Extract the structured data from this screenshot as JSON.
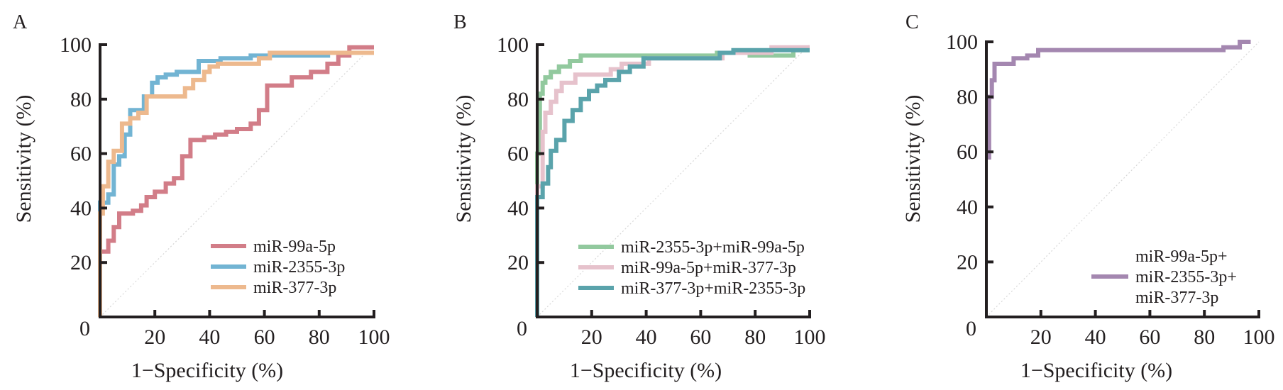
{
  "chart_data": [
    {
      "type": "line",
      "panel": "A",
      "xlabel": "1−Specificity (%)",
      "ylabel": "Sensitivity (%)",
      "xlim": [
        0,
        100
      ],
      "ylim": [
        0,
        100
      ],
      "xticks": [
        "20",
        "40",
        "60",
        "80",
        "100"
      ],
      "yticks": [
        "20",
        "40",
        "60",
        "80",
        "100"
      ],
      "origin_label": "0",
      "reference_diagonal": true,
      "legend_position": "bottom-right",
      "series": [
        {
          "name": "miR-99a-5p",
          "color": "#d27d88",
          "points": [
            [
              0,
              0
            ],
            [
              0,
              24
            ],
            [
              3,
              24
            ],
            [
              3,
              28
            ],
            [
              5,
              28
            ],
            [
              5,
              33
            ],
            [
              7,
              33
            ],
            [
              7,
              38
            ],
            [
              12,
              38
            ],
            [
              12,
              39
            ],
            [
              15,
              39
            ],
            [
              15,
              41
            ],
            [
              17,
              41
            ],
            [
              17,
              44
            ],
            [
              20,
              44
            ],
            [
              20,
              46
            ],
            [
              24,
              46
            ],
            [
              24,
              49
            ],
            [
              27,
              49
            ],
            [
              27,
              51
            ],
            [
              30,
              51
            ],
            [
              30,
              59
            ],
            [
              33,
              59
            ],
            [
              33,
              65
            ],
            [
              38,
              65
            ],
            [
              38,
              66
            ],
            [
              42,
              66
            ],
            [
              42,
              67
            ],
            [
              46,
              67
            ],
            [
              46,
              68
            ],
            [
              50,
              68
            ],
            [
              50,
              69
            ],
            [
              55,
              69
            ],
            [
              55,
              71
            ],
            [
              58,
              71
            ],
            [
              58,
              76
            ],
            [
              61,
              76
            ],
            [
              61,
              85
            ],
            [
              70,
              85
            ],
            [
              70,
              88
            ],
            [
              77,
              88
            ],
            [
              77,
              90
            ],
            [
              83,
              90
            ],
            [
              83,
              93
            ],
            [
              87,
              93
            ],
            [
              87,
              96
            ],
            [
              91,
              96
            ],
            [
              91,
              99
            ],
            [
              100,
              99
            ]
          ]
        },
        {
          "name": "miR-2355-3p",
          "color": "#72b4d3",
          "points": [
            [
              0,
              0
            ],
            [
              0,
              42
            ],
            [
              3,
              42
            ],
            [
              3,
              45
            ],
            [
              5,
              45
            ],
            [
              5,
              56
            ],
            [
              7,
              56
            ],
            [
              7,
              59
            ],
            [
              9,
              59
            ],
            [
              9,
              67
            ],
            [
              11,
              67
            ],
            [
              11,
              76
            ],
            [
              16,
              76
            ],
            [
              16,
              81
            ],
            [
              19,
              81
            ],
            [
              19,
              86
            ],
            [
              21,
              86
            ],
            [
              21,
              88
            ],
            [
              24,
              88
            ],
            [
              24,
              89
            ],
            [
              28,
              89
            ],
            [
              28,
              90
            ],
            [
              36,
              90
            ],
            [
              36,
              94
            ],
            [
              44,
              94
            ],
            [
              44,
              95
            ],
            [
              55,
              95
            ],
            [
              55,
              96
            ],
            [
              84,
              96
            ]
          ]
        },
        {
          "name": "miR-377-3p",
          "color": "#edb98e",
          "points": [
            [
              0,
              0
            ],
            [
              0,
              38
            ],
            [
              1,
              38
            ],
            [
              1,
              48
            ],
            [
              3,
              48
            ],
            [
              3,
              57
            ],
            [
              5,
              57
            ],
            [
              5,
              61
            ],
            [
              8,
              61
            ],
            [
              8,
              71
            ],
            [
              11,
              71
            ],
            [
              11,
              73
            ],
            [
              14,
              73
            ],
            [
              14,
              75
            ],
            [
              17,
              75
            ],
            [
              17,
              81
            ],
            [
              31,
              81
            ],
            [
              31,
              84
            ],
            [
              34,
              84
            ],
            [
              34,
              87
            ],
            [
              38,
              87
            ],
            [
              38,
              90
            ],
            [
              40,
              90
            ],
            [
              40,
              92
            ],
            [
              43,
              92
            ],
            [
              43,
              93
            ],
            [
              58,
              93
            ],
            [
              58,
              95
            ],
            [
              62,
              95
            ],
            [
              62,
              97
            ],
            [
              100,
              97
            ]
          ]
        }
      ]
    },
    {
      "type": "line",
      "panel": "B",
      "xlabel": "1−Specificity (%)",
      "ylabel": "Sensitivity (%)",
      "xlim": [
        0,
        100
      ],
      "ylim": [
        0,
        100
      ],
      "xticks": [
        "20",
        "40",
        "60",
        "80",
        "100"
      ],
      "yticks": [
        "20",
        "40",
        "60",
        "80",
        "100"
      ],
      "origin_label": "0",
      "reference_diagonal": true,
      "legend_position": "bottom-right",
      "series": [
        {
          "name": "miR-2355-3p+miR-99a-5p",
          "color": "#92c99e",
          "points": [
            [
              0,
              0
            ],
            [
              0,
              60
            ],
            [
              1,
              60
            ],
            [
              1,
              82
            ],
            [
              2,
              82
            ],
            [
              2,
              86
            ],
            [
              3,
              86
            ],
            [
              3,
              88
            ],
            [
              5,
              88
            ],
            [
              5,
              90
            ],
            [
              8,
              90
            ],
            [
              8,
              92
            ],
            [
              12,
              92
            ],
            [
              12,
              94
            ],
            [
              16,
              94
            ],
            [
              16,
              96
            ],
            [
              66,
              96
            ],
            [
              66,
              97
            ],
            [
              78,
              97
            ],
            [
              78,
              96
            ],
            [
              94,
              96
            ],
            [
              94,
              98
            ],
            [
              100,
              98
            ]
          ]
        },
        {
          "name": "miR-99a-5p+miR-377-3p",
          "color": "#e6c2cc",
          "points": [
            [
              0,
              0
            ],
            [
              0,
              48
            ],
            [
              2,
              48
            ],
            [
              2,
              68
            ],
            [
              3,
              68
            ],
            [
              3,
              75
            ],
            [
              5,
              75
            ],
            [
              5,
              79
            ],
            [
              7,
              79
            ],
            [
              7,
              83
            ],
            [
              9,
              83
            ],
            [
              9,
              86
            ],
            [
              14,
              86
            ],
            [
              14,
              89
            ],
            [
              27,
              89
            ],
            [
              27,
              91
            ],
            [
              31,
              91
            ],
            [
              31,
              93
            ],
            [
              41,
              93
            ],
            [
              41,
              95
            ],
            [
              68,
              95
            ],
            [
              68,
              97
            ],
            [
              86,
              97
            ],
            [
              86,
              99
            ],
            [
              100,
              99
            ]
          ]
        },
        {
          "name": "miR-377-3p+miR-2355-3p",
          "color": "#5aa3ab",
          "points": [
            [
              0,
              0
            ],
            [
              0,
              44
            ],
            [
              2,
              44
            ],
            [
              2,
              49
            ],
            [
              4,
              49
            ],
            [
              4,
              55
            ],
            [
              5,
              55
            ],
            [
              5,
              61
            ],
            [
              7,
              61
            ],
            [
              7,
              65
            ],
            [
              10,
              65
            ],
            [
              10,
              72
            ],
            [
              13,
              72
            ],
            [
              13,
              76
            ],
            [
              16,
              76
            ],
            [
              16,
              80
            ],
            [
              19,
              80
            ],
            [
              19,
              83
            ],
            [
              22,
              83
            ],
            [
              22,
              85
            ],
            [
              25,
              85
            ],
            [
              25,
              87
            ],
            [
              30,
              87
            ],
            [
              30,
              90
            ],
            [
              34,
              90
            ],
            [
              34,
              92
            ],
            [
              39,
              92
            ],
            [
              39,
              95
            ],
            [
              67,
              95
            ],
            [
              67,
              97
            ],
            [
              72,
              97
            ],
            [
              72,
              98
            ],
            [
              100,
              98
            ]
          ]
        }
      ]
    },
    {
      "type": "line",
      "panel": "C",
      "xlabel": "1−Specificity (%)",
      "ylabel": "Sensitivity (%)",
      "xlim": [
        0,
        100
      ],
      "ylim": [
        0,
        100
      ],
      "xticks": [
        "20",
        "40",
        "60",
        "80",
        "100"
      ],
      "yticks": [
        "20",
        "40",
        "60",
        "80",
        "100"
      ],
      "origin_label": "0",
      "reference_diagonal": true,
      "legend_position": "bottom-right",
      "series": [
        {
          "name": "miR-99a-5p+\nmiR-2355-3p+\nmiR-377-3p",
          "color": "#a487b0",
          "points": [
            [
              0,
              58
            ],
            [
              1,
              58
            ],
            [
              1,
              80
            ],
            [
              2,
              80
            ],
            [
              2,
              86
            ],
            [
              3,
              86
            ],
            [
              3,
              92
            ],
            [
              10,
              92
            ],
            [
              10,
              94
            ],
            [
              15,
              94
            ],
            [
              15,
              95
            ],
            [
              19,
              95
            ],
            [
              19,
              97
            ],
            [
              87,
              97
            ],
            [
              87,
              98
            ],
            [
              93,
              98
            ],
            [
              93,
              100
            ],
            [
              97,
              100
            ]
          ]
        }
      ]
    }
  ]
}
